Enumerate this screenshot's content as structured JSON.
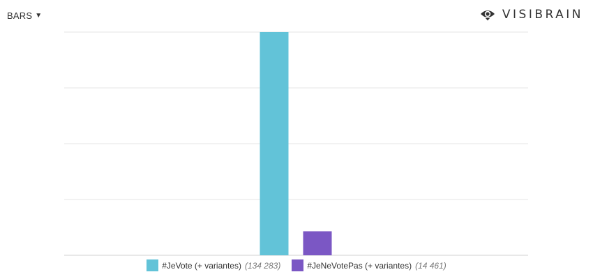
{
  "toolbar": {
    "view_label": "BARS"
  },
  "brand": {
    "name": "VISIBRAIN"
  },
  "chart_data": {
    "type": "bar",
    "grid": true,
    "legend_position": "bottom",
    "ylim": [
      0,
      134283
    ],
    "series": [
      {
        "name": "#JeVote (+ variantes)",
        "count_label": "(134 283)",
        "value": 134283,
        "color": "#62c3d8"
      },
      {
        "name": "#JeNeVotePas (+ variantes)",
        "count_label": "(14 461)",
        "value": 14461,
        "color": "#7b57c4"
      }
    ]
  }
}
